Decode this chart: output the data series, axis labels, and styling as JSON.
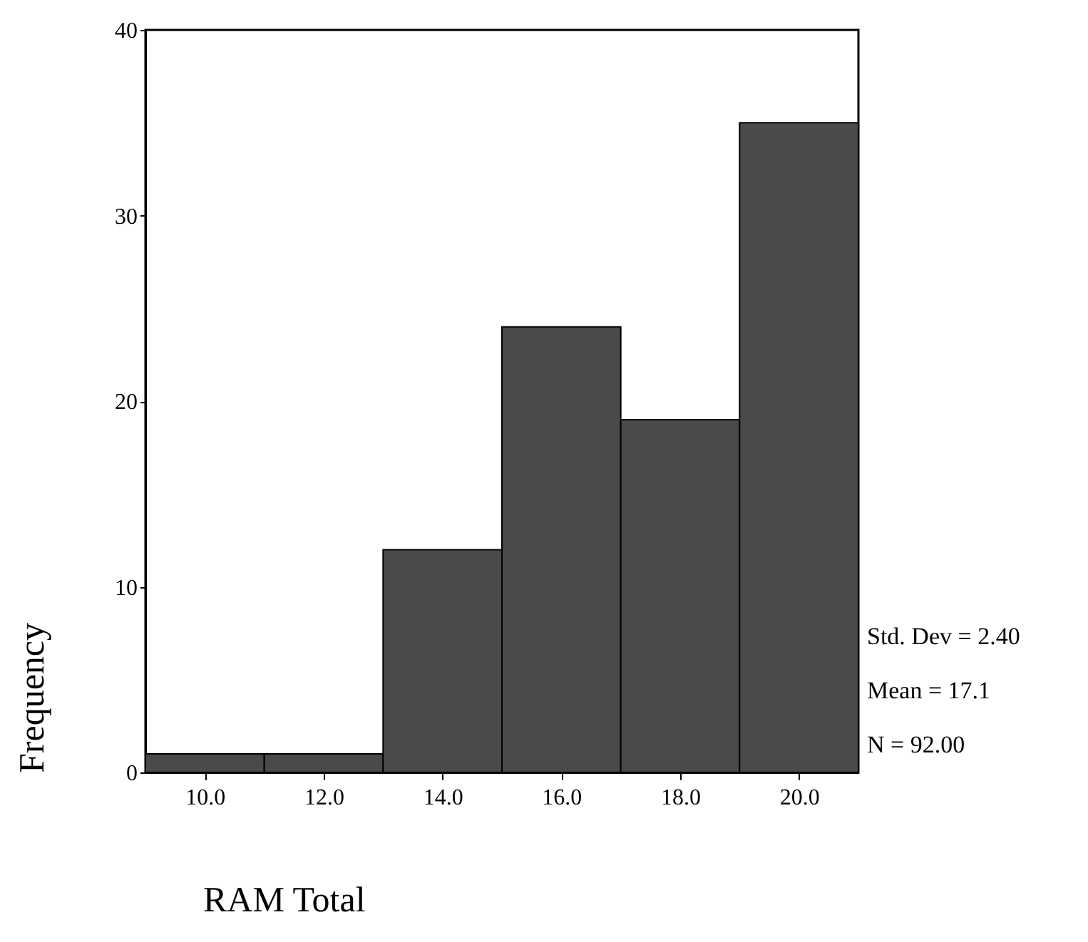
{
  "chart_data": {
    "type": "histogram",
    "xlabel": "RAM Total",
    "ylabel": "Frequency",
    "bins": [
      9,
      11,
      13,
      15,
      17,
      19,
      21
    ],
    "values": [
      1,
      1,
      12,
      24,
      19,
      35
    ],
    "color": "#4a4a4a",
    "xlim": [
      9,
      21
    ],
    "xticks": [
      {
        "value": 10,
        "label": "10.0"
      },
      {
        "value": 12,
        "label": "12.0"
      },
      {
        "value": 14,
        "label": "14.0"
      },
      {
        "value": 16,
        "label": "16.0"
      },
      {
        "value": 18,
        "label": "18.0"
      },
      {
        "value": 20,
        "label": "20.0"
      }
    ],
    "ylim": [
      0,
      40
    ],
    "yticks": [
      0,
      10,
      20,
      30,
      40
    ],
    "grid": false,
    "annotations": [
      "Std. Dev = 2.40",
      "Mean = 17.1",
      "N = 92.00"
    ]
  }
}
